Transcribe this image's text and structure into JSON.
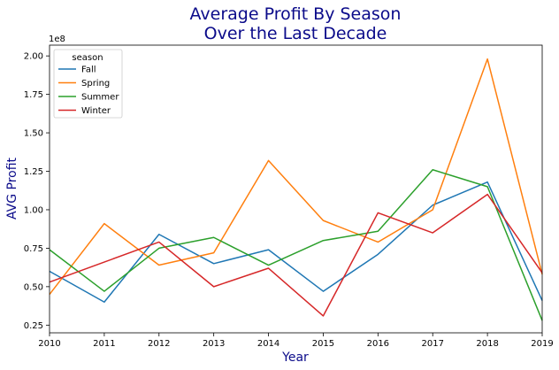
{
  "chart_data": {
    "type": "line",
    "title_line1": "Average Profit By Season",
    "title_line2": "Over the Last Decade",
    "xlabel": "Year",
    "ylabel": "AVG Profit",
    "offset_label": "1e8",
    "x": [
      2010,
      2011,
      2012,
      2013,
      2014,
      2015,
      2016,
      2017,
      2018,
      2019
    ],
    "xlim": [
      2010,
      2019
    ],
    "ylim": [
      0.2,
      2.07
    ],
    "x_ticks": [
      "2010",
      "2011",
      "2012",
      "2013",
      "2014",
      "2015",
      "2016",
      "2017",
      "2018",
      "2019"
    ],
    "y_tick_values": [
      0.25,
      0.5,
      0.75,
      1.0,
      1.25,
      1.5,
      1.75,
      2.0
    ],
    "y_ticks": [
      "0.25",
      "0.50",
      "0.75",
      "1.00",
      "1.25",
      "1.50",
      "1.75",
      "2.00"
    ],
    "grid": false,
    "legend": {
      "title": "season",
      "placement": "top-left"
    },
    "series": [
      {
        "name": "Fall",
        "color": "#1f77b4",
        "values": [
          0.6,
          0.4,
          0.84,
          0.65,
          0.74,
          0.47,
          0.71,
          1.03,
          1.18,
          0.41
        ]
      },
      {
        "name": "Spring",
        "color": "#ff7f0e",
        "values": [
          0.45,
          0.91,
          0.64,
          0.72,
          1.32,
          0.93,
          0.79,
          1.0,
          1.98,
          0.58
        ]
      },
      {
        "name": "Summer",
        "color": "#2ca02c",
        "values": [
          0.74,
          0.47,
          0.75,
          0.82,
          0.64,
          0.8,
          0.86,
          1.26,
          1.15,
          0.28
        ]
      },
      {
        "name": "Winter",
        "color": "#d62728",
        "values": [
          0.53,
          0.66,
          0.79,
          0.5,
          0.62,
          0.31,
          0.98,
          0.85,
          1.1,
          0.59
        ]
      }
    ]
  }
}
